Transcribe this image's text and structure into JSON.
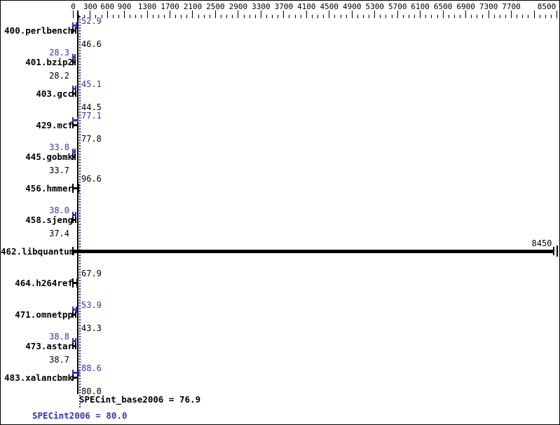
{
  "chart_data": {
    "type": "bar",
    "orientation": "horizontal",
    "title": "",
    "xlabel": "",
    "ylabel": "",
    "xlim": [
      0,
      8500
    ],
    "grid": false,
    "categories": [
      "400.perlbench",
      "401.bzip2",
      "403.gcc",
      "429.mcf",
      "445.gobmk",
      "456.hmmer",
      "458.sjeng",
      "462.libquantum",
      "464.h264ref",
      "471.omnetpp",
      "473.astar",
      "483.xalancbmk"
    ],
    "series": [
      {
        "name": "SPECint2006 (peak)",
        "color": "#3333BB",
        "values": [
          52.9,
          28.3,
          45.1,
          77.1,
          33.8,
          null,
          38.0,
          null,
          null,
          53.9,
          38.8,
          88.6
        ]
      },
      {
        "name": "SPECint_base2006 (base)",
        "color": "#000000",
        "values": [
          46.6,
          28.2,
          44.5,
          77.8,
          33.7,
          96.6,
          37.4,
          8450,
          67.9,
          43.3,
          38.7,
          80.0
        ]
      }
    ],
    "annotations": [
      "SPECint_base2006 = 76.9",
      "SPECint2006 = 80.0"
    ],
    "base_mean": 76.9,
    "peak_mean": 80.0,
    "legend_position": "none"
  },
  "axis": {
    "max": 8500,
    "minor_tick_step": 100,
    "major_tick_values": [
      0,
      300,
      600,
      900,
      1300,
      1700,
      2100,
      2500,
      2900,
      3300,
      3700,
      4100,
      4500,
      4900,
      5300,
      5700,
      6100,
      6500,
      6900,
      7300,
      7700,
      8100,
      8500
    ],
    "tick_labels": [
      {
        "v": 0,
        "t": "0"
      },
      {
        "v": 300,
        "t": "300"
      },
      {
        "v": 600,
        "t": "600"
      },
      {
        "v": 900,
        "t": "900"
      },
      {
        "v": 1300,
        "t": "1300"
      },
      {
        "v": 1700,
        "t": "1700"
      },
      {
        "v": 2100,
        "t": "2100"
      },
      {
        "v": 2500,
        "t": "2500"
      },
      {
        "v": 2900,
        "t": "2900"
      },
      {
        "v": 3300,
        "t": "3300"
      },
      {
        "v": 3700,
        "t": "3700"
      },
      {
        "v": 4100,
        "t": "4100"
      },
      {
        "v": 4500,
        "t": "4500"
      },
      {
        "v": 4900,
        "t": "4900"
      },
      {
        "v": 5300,
        "t": "5300"
      },
      {
        "v": 5700,
        "t": "5700"
      },
      {
        "v": 6100,
        "t": "6100"
      },
      {
        "v": 6500,
        "t": "6500"
      },
      {
        "v": 6900,
        "t": "6900"
      },
      {
        "v": 7300,
        "t": "7300"
      },
      {
        "v": 7700,
        "t": "7700"
      },
      {
        "v": 8500,
        "t": "8500"
      }
    ]
  },
  "rows": [
    {
      "name": "400.perlbench",
      "peak_label": "52.9",
      "base_label": "46.6",
      "peak_value": 52.9,
      "base_value": 46.6,
      "side": "right",
      "single": false,
      "long": false
    },
    {
      "name": "401.bzip2",
      "peak_label": "28.3",
      "base_label": "28.2",
      "peak_value": 28.3,
      "base_value": 28.2,
      "side": "left",
      "single": false,
      "long": false
    },
    {
      "name": "403.gcc",
      "peak_label": "45.1",
      "base_label": "44.5",
      "peak_value": 45.1,
      "base_value": 44.5,
      "side": "right",
      "single": false,
      "long": false
    },
    {
      "name": "429.mcf",
      "peak_label": "77.1",
      "base_label": "77.8",
      "peak_value": 77.1,
      "base_value": 77.8,
      "side": "right",
      "single": false,
      "long": false
    },
    {
      "name": "445.gobmk",
      "peak_label": "33.8",
      "base_label": "33.7",
      "peak_value": 33.8,
      "base_value": 33.7,
      "side": "left",
      "single": false,
      "long": false
    },
    {
      "name": "456.hmmer",
      "peak_label": "",
      "base_label": "96.6",
      "peak_value": null,
      "base_value": 96.6,
      "side": "right",
      "single": true,
      "long": false
    },
    {
      "name": "458.sjeng",
      "peak_label": "38.0",
      "base_label": "37.4",
      "peak_value": 38.0,
      "base_value": 37.4,
      "side": "left",
      "single": false,
      "long": false
    },
    {
      "name": "462.libquantum",
      "peak_label": "",
      "base_label": "8450",
      "peak_value": null,
      "base_value": 8450,
      "side": "end",
      "single": true,
      "long": true
    },
    {
      "name": "464.h264ref",
      "peak_label": "",
      "base_label": "67.9",
      "peak_value": null,
      "base_value": 67.9,
      "side": "right",
      "single": true,
      "long": false
    },
    {
      "name": "471.omnetpp",
      "peak_label": "53.9",
      "base_label": "43.3",
      "peak_value": 53.9,
      "base_value": 43.3,
      "side": "right",
      "single": false,
      "long": false
    },
    {
      "name": "473.astar",
      "peak_label": "38.8",
      "base_label": "38.7",
      "peak_value": 38.8,
      "base_value": 38.7,
      "side": "left",
      "single": false,
      "long": false
    },
    {
      "name": "483.xalancbmk",
      "peak_label": "88.6",
      "base_label": "80.0",
      "peak_value": 88.6,
      "base_value": 80.0,
      "side": "right",
      "single": false,
      "long": false
    }
  ],
  "footer": {
    "base_text": "SPECint_base2006 = 76.9",
    "peak_text": "SPECint2006 = 80.0"
  },
  "colors": {
    "peak_blue": "#3333BB",
    "base_black": "#000000",
    "background": "#FFFFFF"
  }
}
